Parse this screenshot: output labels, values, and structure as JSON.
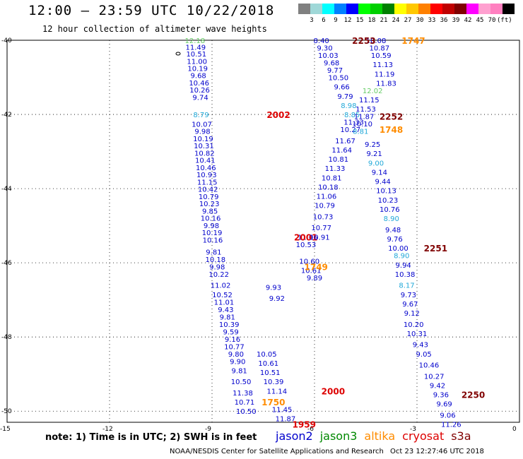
{
  "header": {
    "title": "12:00 – 23:59 UTC 10/22/2018",
    "subtitle": "12 hour collection of altimeter wave heights"
  },
  "colorbar": {
    "colors": [
      "#808080",
      "#9fd8d8",
      "#00ffff",
      "#0080ff",
      "#0000ff",
      "#00ff00",
      "#00d000",
      "#008000",
      "#ffff00",
      "#ffc800",
      "#ff8000",
      "#ff0000",
      "#c00000",
      "#800000",
      "#ff00ff",
      "#ffa0d0",
      "#ff80c0",
      "#000000"
    ],
    "labels": [
      "3",
      "6",
      "9",
      "12",
      "15",
      "18",
      "21",
      "24",
      "27",
      "30",
      "33",
      "36",
      "39",
      "42",
      "45",
      "70",
      "(ft)"
    ]
  },
  "axes": {
    "lat_labels": [
      "-40",
      "-42",
      "-44",
      "-46",
      "-48",
      "-50"
    ],
    "lon_labels": [
      "-15",
      "-12",
      "-9",
      "-6",
      "-3",
      "0"
    ]
  },
  "chart_data": {
    "type": "scatter",
    "xlim": [
      -15,
      0
    ],
    "ylim": [
      -50.3,
      -40
    ],
    "grid": true,
    "tracks": [
      {
        "satellite": "jason2",
        "time_label": "2002",
        "time_pos": [
          -7.4,
          -42.0
        ],
        "points": [
          [
            -9.5,
            -40.0,
            "12.18",
            "jason3"
          ],
          [
            -9.48,
            -40.18,
            "11.49",
            "jason2"
          ],
          [
            -9.46,
            -40.36,
            "10.51",
            "jason2"
          ],
          [
            -9.44,
            -40.56,
            "11.00",
            "jason2"
          ],
          [
            -9.42,
            -40.75,
            "10.19",
            "jason2"
          ],
          [
            -9.4,
            -40.94,
            "9.68",
            "jason2"
          ],
          [
            -9.38,
            -41.14,
            "10.46",
            "jason2"
          ],
          [
            -9.36,
            -41.33,
            "10.26",
            "jason2"
          ],
          [
            -9.34,
            -41.53,
            "9.74",
            "jason2"
          ],
          [
            -9.32,
            -42.0,
            "8.79",
            "cyan"
          ],
          [
            -9.3,
            -42.26,
            "10.07",
            "jason2"
          ],
          [
            -9.28,
            -42.45,
            "9.98",
            "jason2"
          ],
          [
            -9.26,
            -42.65,
            "10.19",
            "jason2"
          ],
          [
            -9.24,
            -42.84,
            "10.31",
            "jason2"
          ],
          [
            -9.22,
            -43.04,
            "10.82",
            "jason2"
          ],
          [
            -9.2,
            -43.23,
            "10.41",
            "jason2"
          ],
          [
            -9.18,
            -43.43,
            "10.46",
            "jason2"
          ],
          [
            -9.16,
            -43.62,
            "10.93",
            "jason2"
          ],
          [
            -9.14,
            -43.82,
            "11.15",
            "jason2"
          ],
          [
            -9.12,
            -44.01,
            "10.42",
            "jason2"
          ],
          [
            -9.1,
            -44.21,
            "10.79",
            "jason2"
          ],
          [
            -9.08,
            -44.4,
            "10.23",
            "jason2"
          ],
          [
            -9.06,
            -44.6,
            "9.85",
            "jason2"
          ],
          [
            -9.04,
            -44.79,
            "10.16",
            "jason2"
          ],
          [
            -9.02,
            -44.99,
            "9.98",
            "jason2"
          ],
          [
            -9.0,
            -45.18,
            "10.19",
            "jason2"
          ],
          [
            -8.98,
            -45.38,
            "10.16",
            "jason2"
          ]
        ]
      },
      {
        "satellite": "jason2",
        "time_label": "2001",
        "time_pos": [
          -6.6,
          -45.3
        ],
        "points": [
          [
            -6.2,
            -45.3,
            "11.06",
            "jason2"
          ],
          [
            -6.25,
            -45.5,
            "10.53",
            "jason2"
          ],
          [
            -6.15,
            -45.95,
            "10.60",
            "jason2"
          ],
          [
            -6.1,
            -46.2,
            "10.61",
            "jason2"
          ],
          [
            -6.0,
            -46.4,
            "9.89",
            "jason2"
          ],
          [
            -7.2,
            -46.65,
            "9.93",
            "jason2"
          ],
          [
            -7.1,
            -46.95,
            "9.92",
            "jason2"
          ],
          [
            -8.95,
            -45.7,
            "9.81",
            "jason2"
          ],
          [
            -8.9,
            -45.9,
            "10.18",
            "jason2"
          ],
          [
            -8.85,
            -46.1,
            "9.98",
            "jason2"
          ],
          [
            -8.8,
            -46.3,
            "10.22",
            "jason2"
          ],
          [
            -8.75,
            -46.6,
            "11.02",
            "jason2"
          ],
          [
            -8.7,
            -46.85,
            "10.52",
            "jason2"
          ],
          [
            -8.65,
            -47.05,
            "11.01",
            "jason2"
          ],
          [
            -8.6,
            -47.25,
            "9.43",
            "jason2"
          ],
          [
            -8.55,
            -47.45,
            "9.81",
            "jason2"
          ],
          [
            -8.5,
            -47.65,
            "10.39",
            "jason2"
          ],
          [
            -8.45,
            -47.85,
            "9.59",
            "jason2"
          ],
          [
            -8.4,
            -48.05,
            "9.16",
            "jason2"
          ],
          [
            -8.35,
            -48.25,
            "10.77",
            "jason2"
          ],
          [
            -8.3,
            -48.45,
            "9.80",
            "jason2"
          ],
          [
            -8.25,
            -48.65,
            "9.90",
            "jason2"
          ],
          [
            -8.2,
            -48.9,
            "9.81",
            "jason2"
          ],
          [
            -8.15,
            -49.2,
            "10.50",
            "jason2"
          ],
          [
            -8.1,
            -49.5,
            "11.38",
            "jason2"
          ],
          [
            -8.05,
            -49.75,
            "10.71",
            "jason2"
          ],
          [
            -8.0,
            -50.0,
            "10.50",
            "jason2"
          ]
        ]
      },
      {
        "satellite": "jason2",
        "time_label": "2000",
        "time_pos": [
          -5.8,
          -49.45
        ],
        "points": [
          [
            -7.4,
            -48.45,
            "10.05",
            "jason2"
          ],
          [
            -7.35,
            -48.7,
            "10.61",
            "jason2"
          ],
          [
            -7.3,
            -48.95,
            "10.51",
            "jason2"
          ],
          [
            -7.2,
            -49.2,
            "10.39",
            "jason2"
          ],
          [
            -7.1,
            -49.45,
            "11.14",
            "jason2"
          ],
          [
            -6.95,
            -49.95,
            "11.45",
            "jason2"
          ],
          [
            -6.85,
            -50.2,
            "11.87",
            "jason2"
          ]
        ]
      },
      {
        "satellite": "jason2",
        "time_label": "",
        "time_pos": null,
        "points": [
          [
            -5.8,
            -40.0,
            "8.40",
            "jason2"
          ],
          [
            -5.7,
            -40.2,
            "9.30",
            "jason2"
          ],
          [
            -5.6,
            -40.4,
            "10.03",
            "jason2"
          ],
          [
            -5.5,
            -40.6,
            "9.68",
            "jason2"
          ],
          [
            -5.4,
            -40.8,
            "9.77",
            "jason2"
          ],
          [
            -5.3,
            -41.0,
            "10.50",
            "jason2"
          ],
          [
            -5.2,
            -41.25,
            "9.66",
            "jason2"
          ],
          [
            -5.1,
            -41.5,
            "9.79",
            "jason2"
          ],
          [
            -5.0,
            -41.75,
            "8.98",
            "cyan"
          ],
          [
            -4.9,
            -42.0,
            "8.85",
            "cyan"
          ],
          [
            -4.85,
            -42.2,
            "11.33",
            "jason2"
          ],
          [
            -4.95,
            -42.4,
            "10.27",
            "jason2"
          ],
          [
            -5.1,
            -42.7,
            "11.67",
            "jason2"
          ],
          [
            -5.2,
            -42.95,
            "11.64",
            "jason2"
          ],
          [
            -5.3,
            -43.2,
            "10.81",
            "jason2"
          ],
          [
            -5.4,
            -43.45,
            "11.33",
            "jason2"
          ],
          [
            -5.5,
            -43.7,
            "10.81",
            "jason2"
          ],
          [
            -5.6,
            -43.95,
            "10.18",
            "jason2"
          ],
          [
            -5.65,
            -44.2,
            "11.06",
            "jason2"
          ],
          [
            -5.7,
            -44.45,
            "10.79",
            "jason2"
          ],
          [
            -5.75,
            -44.75,
            "10.73",
            "jason2"
          ],
          [
            -5.8,
            -45.05,
            "10.77",
            "jason2"
          ],
          [
            -5.85,
            -45.3,
            "10.91",
            "jason2"
          ]
        ]
      },
      {
        "satellite": "cryosat",
        "time_label": "2253",
        "time_pos": [
          -4.9,
          -40.0
        ],
        "points": [
          [
            -4.2,
            -40.0,
            "10.08",
            "jason2"
          ],
          [
            -4.1,
            -40.2,
            "10.87",
            "jason2"
          ],
          [
            -4.05,
            -40.4,
            "10.59",
            "jason2"
          ],
          [
            -4.0,
            -40.65,
            "11.13",
            "jason2"
          ],
          [
            -3.95,
            -40.9,
            "11.19",
            "jason2"
          ],
          [
            -3.9,
            -41.15,
            "11.83",
            "jason2"
          ],
          [
            -4.3,
            -41.35,
            "12.02",
            "jason3"
          ],
          [
            -4.4,
            -41.6,
            "11.15",
            "jason2"
          ],
          [
            -4.5,
            -41.85,
            "11.53",
            "jason2"
          ],
          [
            -4.55,
            -42.05,
            "11.87",
            "jason2"
          ],
          [
            -4.6,
            -42.25,
            "10.10",
            "jason2"
          ],
          [
            -4.65,
            -42.45,
            "8.81",
            "cyan"
          ],
          [
            -4.3,
            -42.8,
            "9.25",
            "jason2"
          ],
          [
            -4.25,
            -43.05,
            "9.21",
            "jason2"
          ],
          [
            -4.2,
            -43.3,
            "9.00",
            "cyan"
          ],
          [
            -4.1,
            -43.55,
            "9.14",
            "jason2"
          ],
          [
            -4.0,
            -43.8,
            "9.44",
            "jason2"
          ],
          [
            -3.9,
            -44.05,
            "10.13",
            "jason2"
          ],
          [
            -3.85,
            -44.3,
            "10.23",
            "jason2"
          ],
          [
            -3.8,
            -44.55,
            "10.76",
            "jason2"
          ],
          [
            -3.75,
            -44.8,
            "8.90",
            "cyan"
          ],
          [
            -3.7,
            -45.1,
            "9.48",
            "jason2"
          ],
          [
            -3.65,
            -45.35,
            "9.76",
            "jason2"
          ],
          [
            -3.55,
            -45.6,
            "10.00",
            "jason2"
          ],
          [
            -3.45,
            -45.8,
            "8.90",
            "cyan"
          ]
        ]
      },
      {
        "satellite": "altika",
        "time_label": "1748",
        "time_pos": [
          -4.1,
          -42.4
        ],
        "points": []
      },
      {
        "satellite": "cryosat",
        "time_label": "2252",
        "time_pos": [
          -4.1,
          -42.05
        ],
        "points": []
      },
      {
        "satellite": "cryosat",
        "time_label": "2251",
        "time_pos": [
          -2.8,
          -45.6
        ],
        "points": [
          [
            -3.4,
            -46.05,
            "9.94",
            "jason2"
          ],
          [
            -3.35,
            -46.3,
            "10.38",
            "jason2"
          ],
          [
            -3.3,
            -46.6,
            "8.17",
            "cyan"
          ],
          [
            -3.25,
            -46.85,
            "9.73",
            "jason2"
          ],
          [
            -3.2,
            -47.1,
            "9.67",
            "jason2"
          ],
          [
            -3.15,
            -47.35,
            "9.12",
            "jason2"
          ],
          [
            -3.1,
            -47.65,
            "10.20",
            "jason2"
          ],
          [
            -3.0,
            -47.9,
            "10.31",
            "jason2"
          ],
          [
            -2.9,
            -48.2,
            "9.43",
            "jason2"
          ],
          [
            -2.8,
            -48.45,
            "9.05",
            "jason2"
          ],
          [
            -2.65,
            -48.75,
            "10.46",
            "jason2"
          ],
          [
            -2.5,
            -49.05,
            "10.27",
            "jason2"
          ],
          [
            -2.4,
            -49.3,
            "9.42",
            "jason2"
          ],
          [
            -2.3,
            -49.55,
            "9.36",
            "jason2"
          ],
          [
            -2.2,
            -49.8,
            "9.69",
            "jason2"
          ],
          [
            -2.1,
            -50.1,
            "9.06",
            "jason2"
          ],
          [
            -2.0,
            -50.35,
            "11.26",
            "jason2"
          ]
        ]
      },
      {
        "satellite": "cryosat",
        "time_label": "2250",
        "time_pos": [
          -1.7,
          -49.55
        ],
        "points": []
      },
      {
        "satellite": "altika",
        "time_label": "1747",
        "time_pos": [
          -3.45,
          -40.0
        ],
        "points": []
      },
      {
        "satellite": "altika",
        "time_label": "1749",
        "time_pos": [
          -6.3,
          -46.1
        ],
        "points": []
      },
      {
        "satellite": "altika",
        "time_label": "1750",
        "time_pos": [
          -7.55,
          -49.75
        ],
        "points": []
      },
      {
        "satellite": "jason2",
        "time_label": "1959",
        "time_pos": [
          -6.65,
          -50.35
        ],
        "points": []
      }
    ]
  },
  "notes": {
    "note": "note: 1) Time is in UTC; 2) SWH is in feet"
  },
  "legend": [
    {
      "name": "jason2",
      "color": "#0000cc"
    },
    {
      "name": "jason3",
      "color": "#008800"
    },
    {
      "name": "altika",
      "color": "#ff8c00"
    },
    {
      "name": "cryosat",
      "color": "#dd0000"
    },
    {
      "name": "s3a",
      "color": "#800000"
    }
  ],
  "footer": {
    "credit": "NOAA/NESDIS Center for Satellite Applications and Research",
    "timestamp": "Oct 23 12:27:46 UTC 2018"
  },
  "colors": {
    "jason2": "#0000cc",
    "jason3": "#66cc66",
    "cyan": "#20a8d8",
    "altika": "#ff8c00",
    "cryosat_red": "#dd0000",
    "cryosat_dark": "#800000"
  }
}
